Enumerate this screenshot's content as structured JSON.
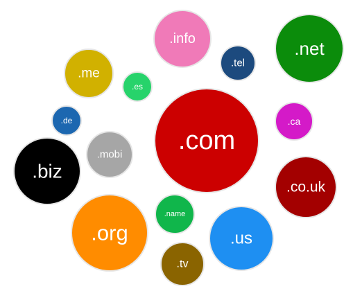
{
  "domains": [
    {
      "key": "com",
      "label": ".com",
      "color": "#cc0000"
    },
    {
      "key": "net",
      "label": ".net",
      "color": "#0b8c0b"
    },
    {
      "key": "info",
      "label": ".info",
      "color": "#f07ab8"
    },
    {
      "key": "tel",
      "label": ".tel",
      "color": "#1c4a7e"
    },
    {
      "key": "me",
      "label": ".me",
      "color": "#d1b100"
    },
    {
      "key": "es",
      "label": ".es",
      "color": "#27d36b"
    },
    {
      "key": "ca",
      "label": ".ca",
      "color": "#d41ac8"
    },
    {
      "key": "de",
      "label": ".de",
      "color": "#1c67b0"
    },
    {
      "key": "mobi",
      "label": ".mobi",
      "color": "#a6a6a6"
    },
    {
      "key": "biz",
      "label": ".biz",
      "color": "#000000"
    },
    {
      "key": "co-uk",
      "label": ".co.uk",
      "color": "#a30000"
    },
    {
      "key": "name",
      "label": ".name",
      "color": "#10b64b"
    },
    {
      "key": "org",
      "label": ".org",
      "color": "#ff8c00"
    },
    {
      "key": "us",
      "label": ".us",
      "color": "#1e8ff2"
    },
    {
      "key": "tv",
      "label": ".tv",
      "color": "#8a6400"
    }
  ]
}
